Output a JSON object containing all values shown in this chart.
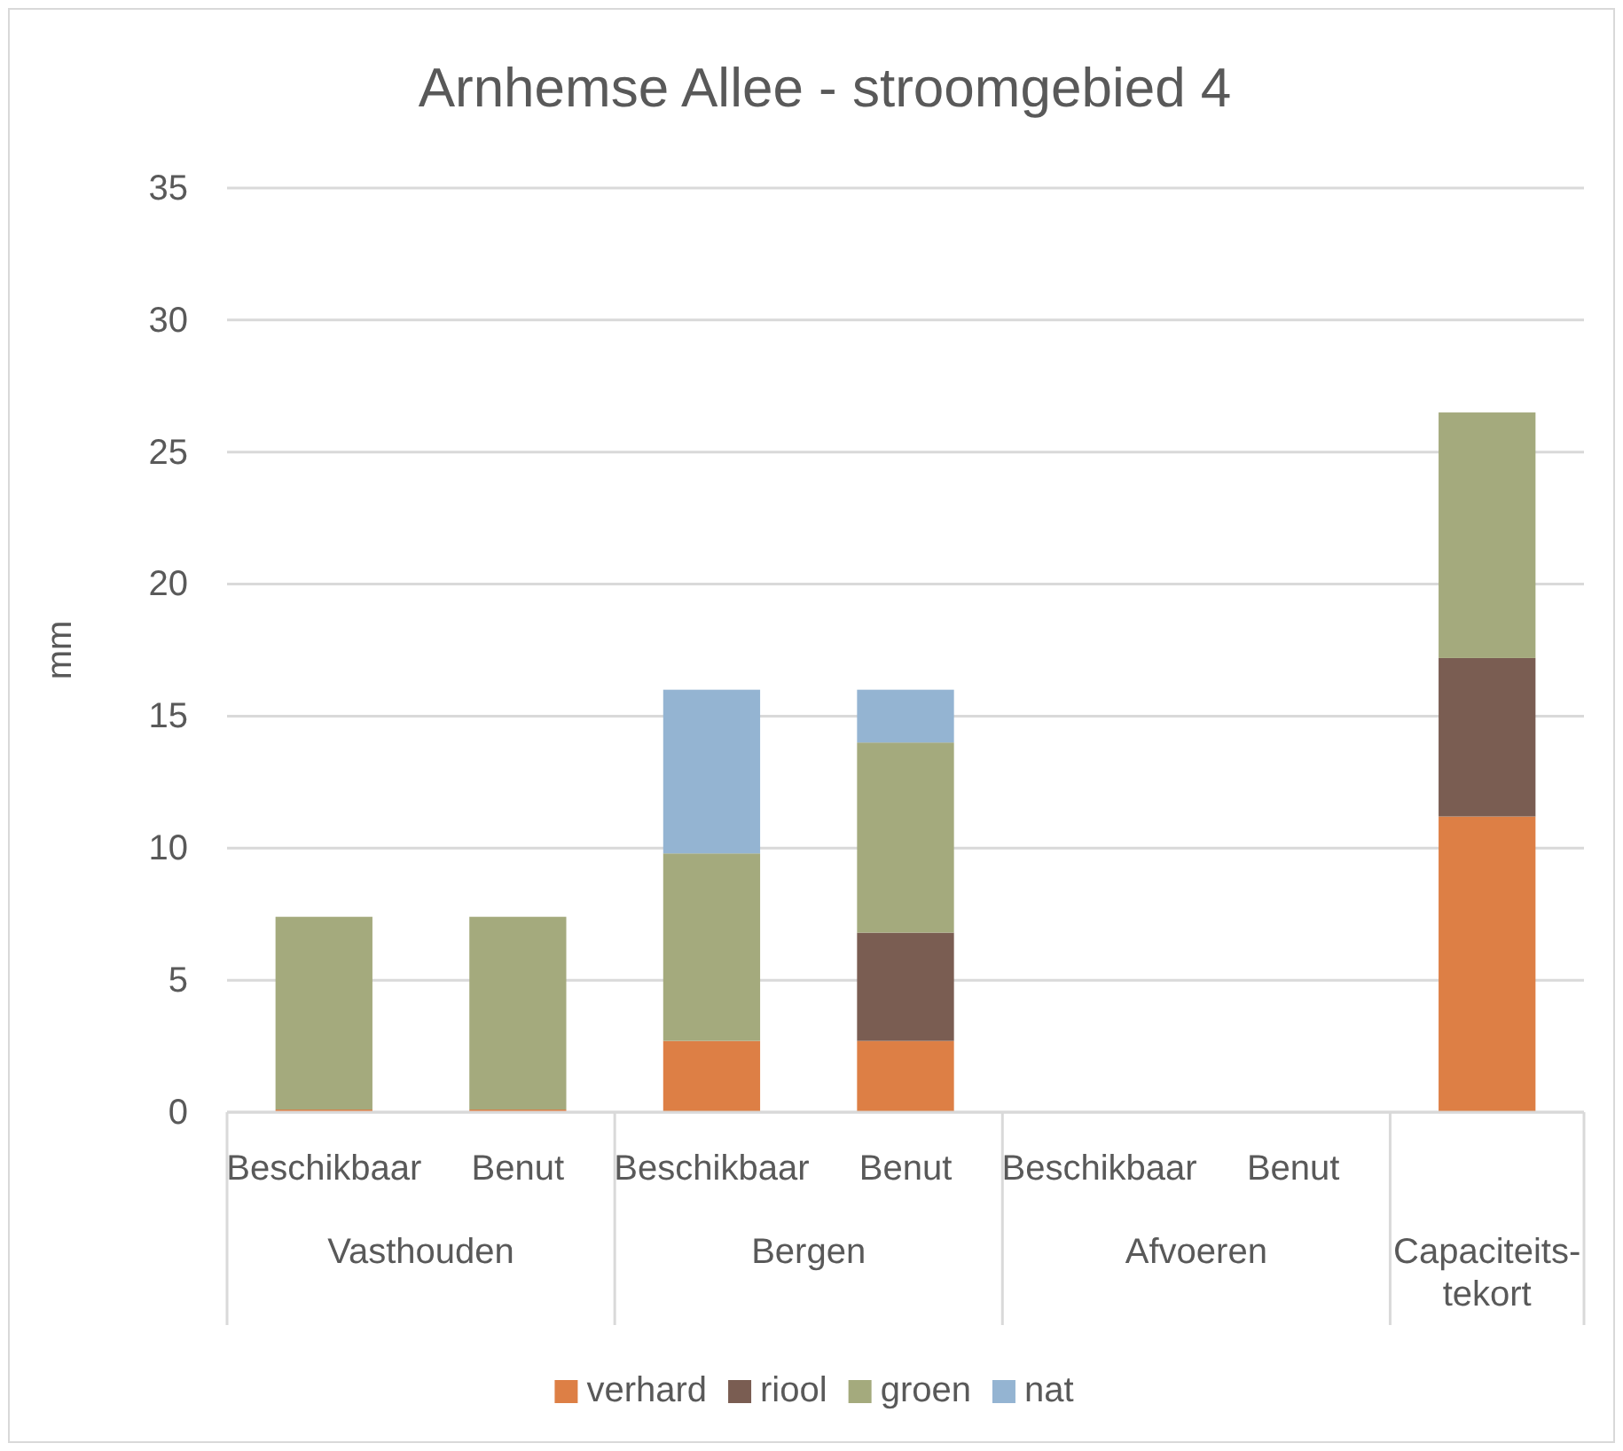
{
  "chart_data": {
    "type": "bar",
    "title": "Arnhemse Allee - stroomgebied 4",
    "ylabel": "mm",
    "stacked": true,
    "categories": [
      "Beschikbaar",
      "Benut",
      "Beschikbaar",
      "Benut",
      "Beschikbaar",
      "Benut",
      null
    ],
    "annotations": [
      "Vasthouden",
      "Bergen",
      "Afvoeren",
      "Capaciteits-tekort"
    ],
    "series": [
      {
        "name": "verhard",
        "color": "#dd7f45",
        "values": [
          0.1,
          0.1,
          2.7,
          2.7,
          0,
          0,
          11.2
        ]
      },
      {
        "name": "riool",
        "color": "#7a5d52",
        "values": [
          0,
          0,
          0,
          4.1,
          0,
          0,
          6.0
        ]
      },
      {
        "name": "groen",
        "color": "#a4aa7d",
        "values": [
          7.3,
          7.3,
          7.1,
          7.2,
          0,
          0,
          9.3
        ]
      },
      {
        "name": "nat",
        "color": "#94b4d2",
        "values": [
          0,
          0,
          6.2,
          2.0,
          0,
          0,
          0
        ]
      }
    ],
    "ylim": [
      0,
      35
    ],
    "yticks": [
      0,
      5,
      10,
      15,
      20,
      25,
      30,
      35
    ],
    "grid": "y",
    "legend": "bottom"
  }
}
